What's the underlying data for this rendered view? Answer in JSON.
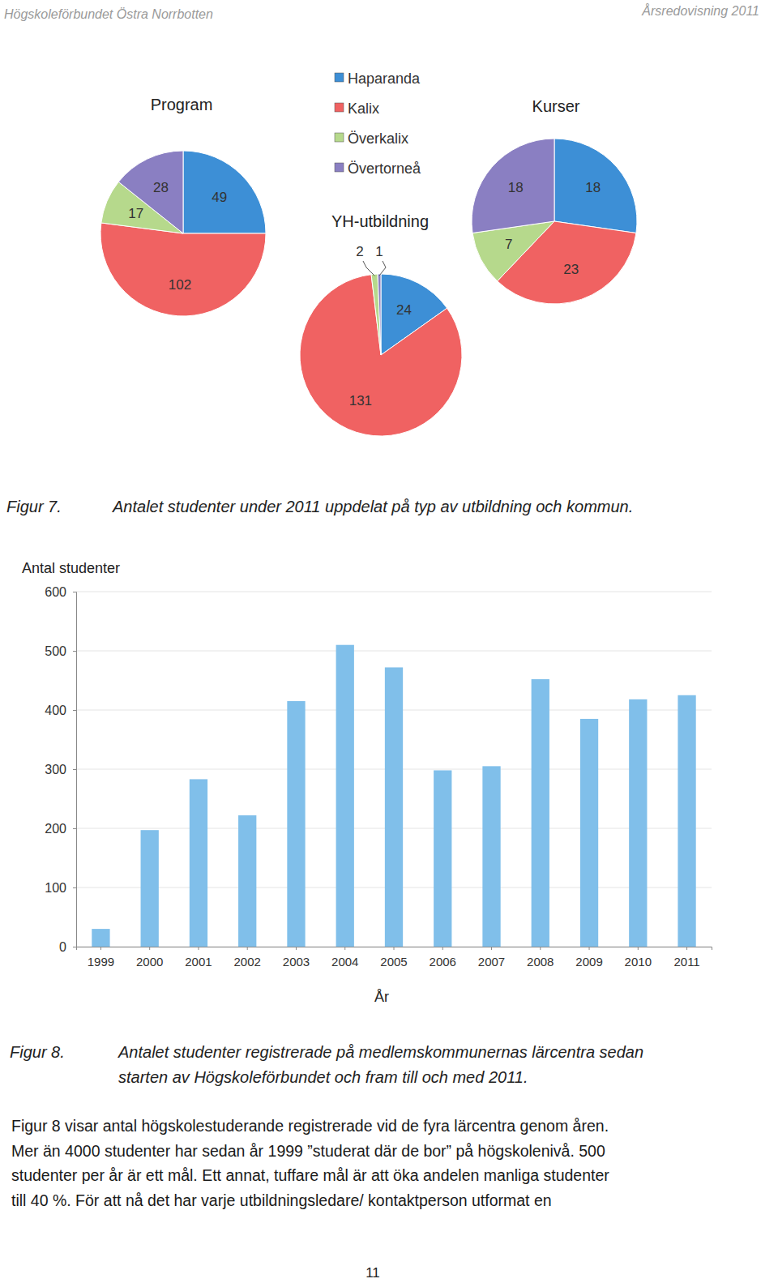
{
  "header": {
    "left": "Högskoleförbundet Östra Norrbotten",
    "right": "Årsredovisning 2011"
  },
  "chart_data": [
    {
      "type": "pie",
      "title": "Program",
      "categories": [
        "Haparanda",
        "Kalix",
        "Överkalix",
        "Övertorneå"
      ],
      "values": [
        49,
        102,
        17,
        28
      ],
      "colors": [
        "#3d8fd6",
        "#f06262",
        "#b6d98c",
        "#8a7fc2"
      ],
      "data_labels": true,
      "legend": "top"
    },
    {
      "type": "pie",
      "title": "YH-utbildning",
      "categories": [
        "Haparanda",
        "Kalix",
        "Överkalix",
        "Övertorneå"
      ],
      "values": [
        24,
        131,
        2,
        1
      ],
      "colors": [
        "#3d8fd6",
        "#f06262",
        "#b6d98c",
        "#8a7fc2"
      ],
      "data_labels": true
    },
    {
      "type": "pie",
      "title": "Kurser",
      "categories": [
        "Haparanda",
        "Kalix",
        "Överkalix",
        "Övertorneå"
      ],
      "values": [
        18,
        23,
        7,
        18
      ],
      "colors": [
        "#3d8fd6",
        "#f06262",
        "#b6d98c",
        "#8a7fc2"
      ],
      "data_labels": true
    },
    {
      "type": "bar",
      "categories": [
        "1999",
        "2000",
        "2001",
        "2002",
        "2003",
        "2004",
        "2005",
        "2006",
        "2007",
        "2008",
        "2009",
        "2010",
        "2011"
      ],
      "values": [
        30,
        197,
        283,
        222,
        415,
        510,
        472,
        298,
        305,
        452,
        385,
        418,
        425
      ],
      "color": "#80bfea",
      "ylabel": "Antal studenter",
      "xlabel": "År",
      "ylim": [
        0,
        600
      ],
      "yticks": [
        0,
        100,
        200,
        300,
        400,
        500,
        600
      ],
      "grid": true
    }
  ],
  "figures": [
    {
      "number": "Figur 7.",
      "caption": [
        "Antalet studenter under 2011 uppdelat på typ av utbildning och kommun."
      ]
    },
    {
      "number": "Figur 8.",
      "caption": [
        "Antalet studenter registrerade på medlemskommunernas lärcentra sedan",
        "starten av Högskoleförbundet och fram till och med 2011."
      ]
    }
  ],
  "body": [
    "Figur 8 visar antal högskolestuderande registrerade vid de fyra lärcentra genom åren.",
    "Mer än 4000 studenter har sedan år 1999 ”studerat där de bor” på högskolenivå. 500",
    "studenter per år är ett mål. Ett annat, tuffare mål är att öka andelen manliga studenter",
    "till 40 %. För att nå det har varje utbildningsledare/ kontaktperson utformat en"
  ],
  "page_number": 11
}
